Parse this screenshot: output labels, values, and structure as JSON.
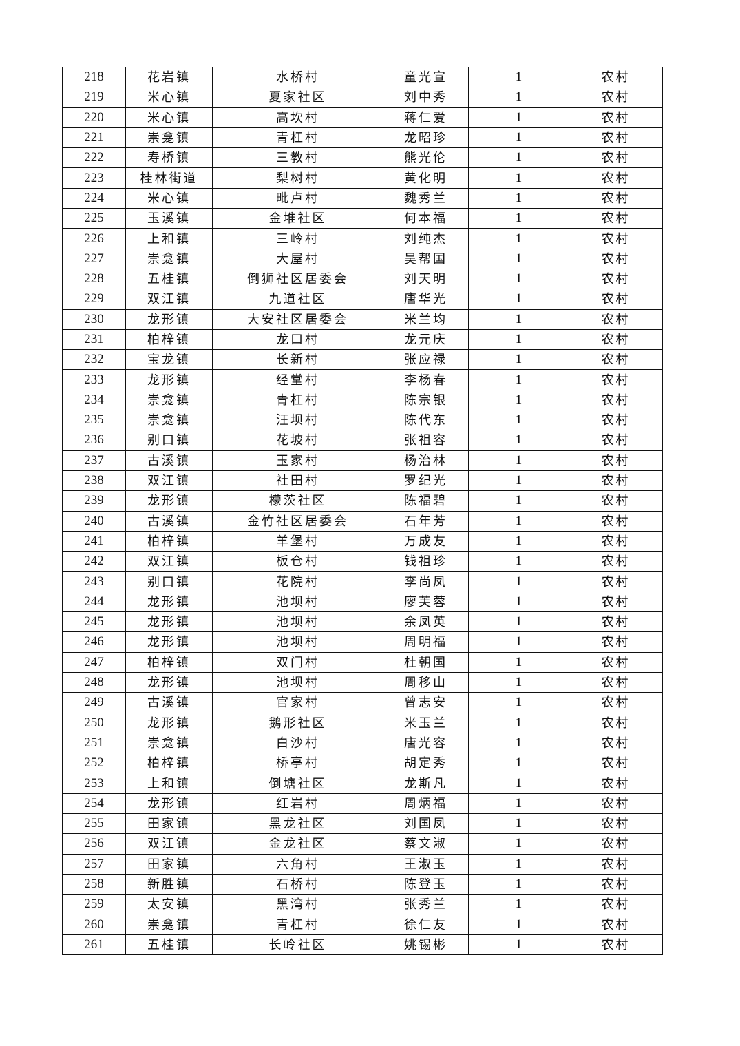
{
  "table": {
    "rows": [
      [
        "218",
        "花岩镇",
        "水桥村",
        "童光宣",
        "1",
        "农村"
      ],
      [
        "219",
        "米心镇",
        "夏家社区",
        "刘中秀",
        "1",
        "农村"
      ],
      [
        "220",
        "米心镇",
        "高坎村",
        "蒋仁爱",
        "1",
        "农村"
      ],
      [
        "221",
        "崇龛镇",
        "青杠村",
        "龙昭珍",
        "1",
        "农村"
      ],
      [
        "222",
        "寿桥镇",
        "三教村",
        "熊光伦",
        "1",
        "农村"
      ],
      [
        "223",
        "桂林街道",
        "梨树村",
        "黄化明",
        "1",
        "农村"
      ],
      [
        "224",
        "米心镇",
        "毗卢村",
        "魏秀兰",
        "1",
        "农村"
      ],
      [
        "225",
        "玉溪镇",
        "金堆社区",
        "何本福",
        "1",
        "农村"
      ],
      [
        "226",
        "上和镇",
        "三岭村",
        "刘纯杰",
        "1",
        "农村"
      ],
      [
        "227",
        "崇龛镇",
        "大屋村",
        "吴帮国",
        "1",
        "农村"
      ],
      [
        "228",
        "五桂镇",
        "倒狮社区居委会",
        "刘天明",
        "1",
        "农村"
      ],
      [
        "229",
        "双江镇",
        "九道社区",
        "唐华光",
        "1",
        "农村"
      ],
      [
        "230",
        "龙形镇",
        "大安社区居委会",
        "米兰均",
        "1",
        "农村"
      ],
      [
        "231",
        "柏梓镇",
        "龙口村",
        "龙元庆",
        "1",
        "农村"
      ],
      [
        "232",
        "宝龙镇",
        "长新村",
        "张应禄",
        "1",
        "农村"
      ],
      [
        "233",
        "龙形镇",
        "经堂村",
        "李杨春",
        "1",
        "农村"
      ],
      [
        "234",
        "崇龛镇",
        "青杠村",
        "陈宗银",
        "1",
        "农村"
      ],
      [
        "235",
        "崇龛镇",
        "汪坝村",
        "陈代东",
        "1",
        "农村"
      ],
      [
        "236",
        "别口镇",
        "花坡村",
        "张祖容",
        "1",
        "农村"
      ],
      [
        "237",
        "古溪镇",
        "玉家村",
        "杨治林",
        "1",
        "农村"
      ],
      [
        "238",
        "双江镇",
        "社田村",
        "罗纪光",
        "1",
        "农村"
      ],
      [
        "239",
        "龙形镇",
        "檬茨社区",
        "陈福碧",
        "1",
        "农村"
      ],
      [
        "240",
        "古溪镇",
        "金竹社区居委会",
        "石年芳",
        "1",
        "农村"
      ],
      [
        "241",
        "柏梓镇",
        "羊堡村",
        "万成友",
        "1",
        "农村"
      ],
      [
        "242",
        "双江镇",
        "板仓村",
        "钱祖珍",
        "1",
        "农村"
      ],
      [
        "243",
        "别口镇",
        "花院村",
        "李尚凤",
        "1",
        "农村"
      ],
      [
        "244",
        "龙形镇",
        "池坝村",
        "廖芙蓉",
        "1",
        "农村"
      ],
      [
        "245",
        "龙形镇",
        "池坝村",
        "余凤英",
        "1",
        "农村"
      ],
      [
        "246",
        "龙形镇",
        "池坝村",
        "周明福",
        "1",
        "农村"
      ],
      [
        "247",
        "柏梓镇",
        "双门村",
        "杜朝国",
        "1",
        "农村"
      ],
      [
        "248",
        "龙形镇",
        "池坝村",
        "周移山",
        "1",
        "农村"
      ],
      [
        "249",
        "古溪镇",
        "官家村",
        "曾志安",
        "1",
        "农村"
      ],
      [
        "250",
        "龙形镇",
        "鹅形社区",
        "米玉兰",
        "1",
        "农村"
      ],
      [
        "251",
        "崇龛镇",
        "白沙村",
        "唐光容",
        "1",
        "农村"
      ],
      [
        "252",
        "柏梓镇",
        "桥亭村",
        "胡定秀",
        "1",
        "农村"
      ],
      [
        "253",
        "上和镇",
        "倒塘社区",
        "龙斯凡",
        "1",
        "农村"
      ],
      [
        "254",
        "龙形镇",
        "红岩村",
        "周炳福",
        "1",
        "农村"
      ],
      [
        "255",
        "田家镇",
        "黑龙社区",
        "刘国凤",
        "1",
        "农村"
      ],
      [
        "256",
        "双江镇",
        "金龙社区",
        "蔡文淑",
        "1",
        "农村"
      ],
      [
        "257",
        "田家镇",
        "六角村",
        "王淑玉",
        "1",
        "农村"
      ],
      [
        "258",
        "新胜镇",
        "石桥村",
        "陈登玉",
        "1",
        "农村"
      ],
      [
        "259",
        "太安镇",
        "黑湾村",
        "张秀兰",
        "1",
        "农村"
      ],
      [
        "260",
        "崇龛镇",
        "青杠村",
        "徐仁友",
        "1",
        "农村"
      ],
      [
        "261",
        "五桂镇",
        "长岭社区",
        "姚锡彬",
        "1",
        "农村"
      ]
    ]
  }
}
